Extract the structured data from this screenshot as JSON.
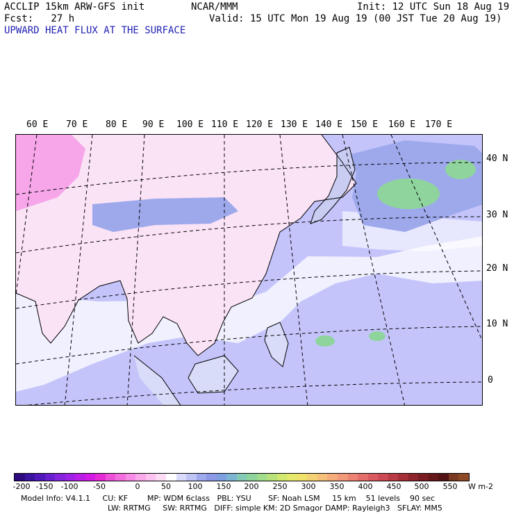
{
  "header": {
    "model": "ACCLIP 15km ARW-GFS init",
    "org": "NCAR/MMM",
    "init": "Init: 12 UTC Sun 18 Aug 19",
    "forecast": "Fcst:   27 h",
    "valid": "Valid: 15 UTC Mon 19 Aug 19 (00 JST Tue 20 Aug 19)",
    "field": "UPWARD HEAT FLUX AT THE SURFACE"
  },
  "map": {
    "longitude_labels": [
      "60 E",
      "70 E",
      "80 E",
      "90 E",
      "100 E",
      "110 E",
      "120 E",
      "130 E",
      "140 E",
      "150 E",
      "160 E",
      "170 E"
    ],
    "latitude_labels": [
      "40 N",
      "30 N",
      "20 N",
      "10 N",
      "0"
    ],
    "colors": {
      "ocean_flux": "#c4c4fb",
      "land_negative_flux": "#fbe3f6",
      "strong_negative_flux": "#f6a6e9",
      "weak_positive_flux": "#9ea9ec",
      "positive_flux": "#8fd49c",
      "near_zero": "#ffffff"
    }
  },
  "colorbar": {
    "tick_labels": [
      "-200",
      "-150",
      "-100",
      "-50",
      "0",
      "50",
      "100",
      "150",
      "200",
      "250",
      "300",
      "350",
      "400",
      "450",
      "500",
      "550"
    ],
    "unit": "W m-2",
    "colors": [
      "#2d0a7f",
      "#3c12a0",
      "#5018b8",
      "#6a1fce",
      "#8523dd",
      "#a021e6",
      "#bb1de9",
      "#d41ae5",
      "#e52ad6",
      "#ee4fd9",
      "#f36ddf",
      "#f78be5",
      "#f9a8ea",
      "#fbc3f0",
      "#fddcf6",
      "#ffffff",
      "#dadbfa",
      "#bfc3f6",
      "#9ea9ee",
      "#8b99e7",
      "#7e9fe0",
      "#7cb6d2",
      "#85cab5",
      "#8fd49c",
      "#a2dc8d",
      "#b9e27c",
      "#d2e870",
      "#e6ea6c",
      "#f1e26c",
      "#f4d174",
      "#f5c07a",
      "#f5ad7c",
      "#f2997a",
      "#ed8473",
      "#e46f6a",
      "#d95b5f",
      "#cb4a53",
      "#b93b45",
      "#a52f38",
      "#8f252c",
      "#7a1d22",
      "#65171a",
      "#531314",
      "#7a3a22",
      "#8e4a26"
    ]
  },
  "footer": {
    "line1": "Model Info: V4.1.1     CU: KF        MP: WDM 6class   PBL: YSU       SF: Noah LSM     15 km    51 levels    90 sec",
    "line2": "LW: RRTMG     SW: RRTMG   DIFF: simple KM: 2D Smagor DAMP: Rayleigh3   SFLAY: MM5"
  }
}
